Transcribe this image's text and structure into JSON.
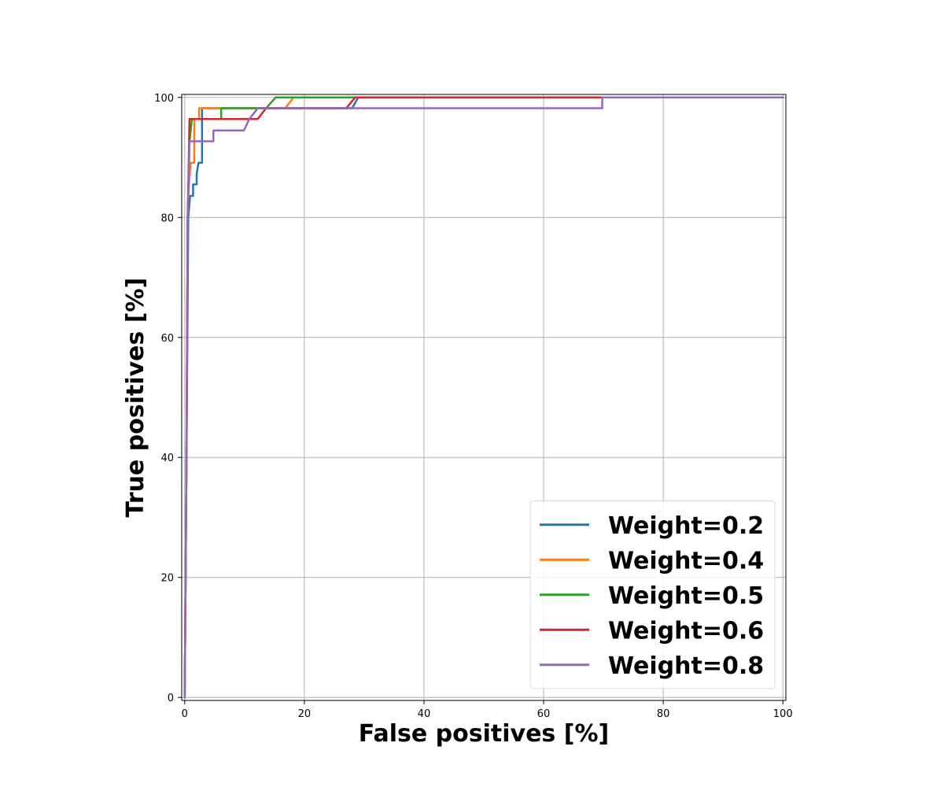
{
  "chart_data": {
    "type": "line",
    "title": "",
    "xlabel": "False positives [%]",
    "ylabel": "True positives [%]",
    "xlim": [
      -0.5,
      100.5
    ],
    "ylim": [
      -0.5,
      100.5
    ],
    "x_ticks": [
      0,
      20,
      40,
      60,
      80,
      100
    ],
    "y_ticks": [
      0,
      20,
      40,
      60,
      80,
      100
    ],
    "grid": true,
    "legend_position": "lower-right",
    "series": [
      {
        "name": "Weight=0.2",
        "color": "#1f77b4",
        "points": [
          [
            0,
            0
          ],
          [
            0.3,
            40
          ],
          [
            0.6,
            80
          ],
          [
            0.9,
            83.6
          ],
          [
            1.4,
            83.6
          ],
          [
            1.4,
            85.5
          ],
          [
            2.0,
            85.5
          ],
          [
            2.0,
            87.3
          ],
          [
            2.3,
            89.1
          ],
          [
            2.9,
            89.1
          ],
          [
            2.9,
            98.2
          ],
          [
            28,
            98.2
          ],
          [
            29,
            100
          ],
          [
            100,
            100
          ]
        ]
      },
      {
        "name": "Weight=0.4",
        "color": "#ff7f0e",
        "points": [
          [
            0,
            0
          ],
          [
            0.3,
            40
          ],
          [
            0.5,
            80
          ],
          [
            0.7,
            85.5
          ],
          [
            1.0,
            89.1
          ],
          [
            1.6,
            89.1
          ],
          [
            1.6,
            96.4
          ],
          [
            2.4,
            96.4
          ],
          [
            2.4,
            98.2
          ],
          [
            16.8,
            98.2
          ],
          [
            18.2,
            100
          ],
          [
            100,
            100
          ]
        ]
      },
      {
        "name": "Weight=0.5",
        "color": "#2ca02c",
        "points": [
          [
            0,
            0
          ],
          [
            0.3,
            40
          ],
          [
            0.5,
            80
          ],
          [
            0.8,
            92.7
          ],
          [
            1.2,
            96.4
          ],
          [
            6.1,
            96.4
          ],
          [
            6.1,
            98.2
          ],
          [
            13.6,
            98.2
          ],
          [
            15.2,
            100
          ],
          [
            100,
            100
          ]
        ]
      },
      {
        "name": "Weight=0.6",
        "color": "#d62728",
        "points": [
          [
            0,
            0
          ],
          [
            0.3,
            40
          ],
          [
            0.5,
            80
          ],
          [
            0.8,
            96.4
          ],
          [
            12.2,
            96.4
          ],
          [
            13.6,
            98.2
          ],
          [
            27,
            98.2
          ],
          [
            28.5,
            100
          ],
          [
            100,
            100
          ]
        ]
      },
      {
        "name": "Weight=0.8",
        "color": "#9467bd",
        "points": [
          [
            0,
            0
          ],
          [
            0.3,
            40
          ],
          [
            0.5,
            80
          ],
          [
            0.8,
            92.7
          ],
          [
            4.8,
            92.7
          ],
          [
            4.8,
            94.5
          ],
          [
            9.9,
            94.5
          ],
          [
            10.8,
            96.4
          ],
          [
            12.2,
            98.2
          ],
          [
            69.8,
            98.2
          ],
          [
            69.8,
            100
          ],
          [
            100,
            100
          ]
        ]
      }
    ]
  }
}
